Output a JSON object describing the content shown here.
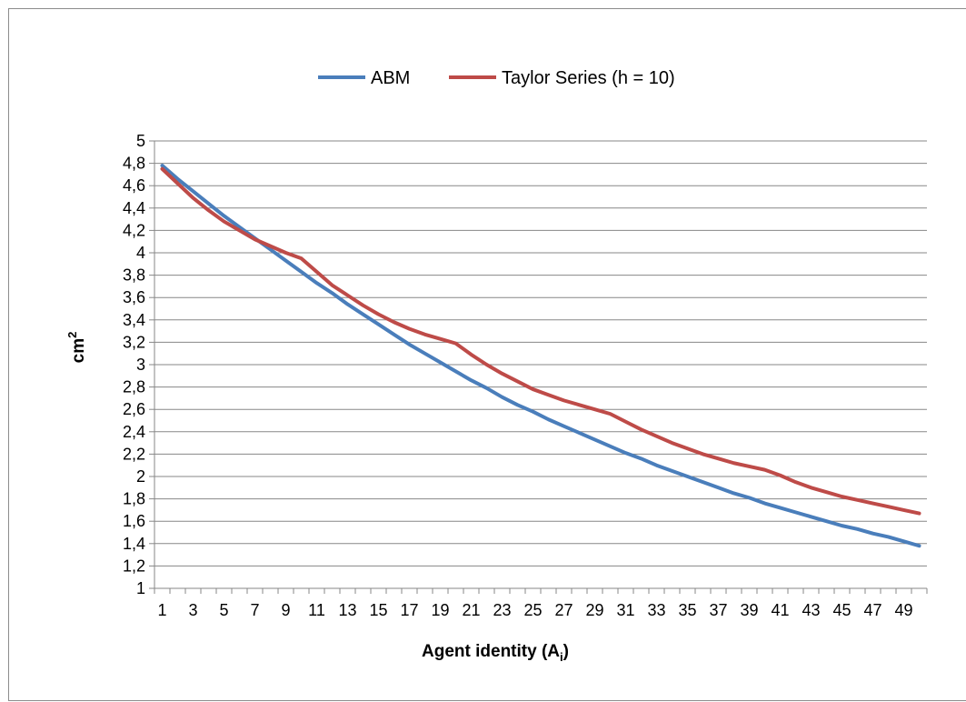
{
  "chart_data": {
    "type": "line",
    "title": "",
    "xlabel": "Agent identity (A",
    "xlabel_sub": "i",
    "xlabel_tail": ")",
    "ylabel": "cm",
    "ylabel_sup": "2",
    "x": [
      1,
      2,
      3,
      4,
      5,
      6,
      7,
      8,
      9,
      10,
      11,
      12,
      13,
      14,
      15,
      16,
      17,
      18,
      19,
      20,
      21,
      22,
      23,
      24,
      25,
      26,
      27,
      28,
      29,
      30,
      31,
      32,
      33,
      34,
      35,
      36,
      37,
      38,
      39,
      40,
      41,
      42,
      43,
      44,
      45,
      46,
      47,
      48,
      49,
      50
    ],
    "x_tick_labels": [
      "1",
      "3",
      "5",
      "7",
      "9",
      "11",
      "13",
      "15",
      "17",
      "19",
      "21",
      "23",
      "25",
      "27",
      "29",
      "31",
      "33",
      "35",
      "37",
      "39",
      "41",
      "43",
      "45",
      "47",
      "49"
    ],
    "y_tick_labels": [
      "1",
      "1,2",
      "1,4",
      "1,6",
      "1,8",
      "2",
      "2,2",
      "2,4",
      "2,6",
      "2,8",
      "3",
      "3,2",
      "3,4",
      "3,6",
      "3,8",
      "4",
      "4,2",
      "4,4",
      "4,6",
      "4,8",
      "5"
    ],
    "ylim": [
      1,
      5
    ],
    "y_step": 0.2,
    "xlim": [
      0.5,
      50.5
    ],
    "grid": "horizontal",
    "legend_position": "top-center",
    "series": [
      {
        "name": "ABM",
        "color": "#4a7ebb",
        "values": [
          4.78,
          4.66,
          4.55,
          4.44,
          4.33,
          4.23,
          4.13,
          4.03,
          3.93,
          3.83,
          3.73,
          3.64,
          3.54,
          3.45,
          3.36,
          3.27,
          3.18,
          3.1,
          3.02,
          2.94,
          2.86,
          2.79,
          2.71,
          2.64,
          2.58,
          2.51,
          2.45,
          2.39,
          2.33,
          2.27,
          2.21,
          2.16,
          2.1,
          2.05,
          2.0,
          1.95,
          1.9,
          1.85,
          1.81,
          1.76,
          1.72,
          1.68,
          1.64,
          1.6,
          1.56,
          1.53,
          1.49,
          1.46,
          1.42,
          1.38
        ]
      },
      {
        "name": "Taylor Series (h = 10)",
        "color": "#be4b48",
        "values": [
          4.75,
          4.62,
          4.49,
          4.38,
          4.28,
          4.2,
          4.12,
          4.06,
          4.0,
          3.95,
          3.83,
          3.71,
          3.62,
          3.53,
          3.45,
          3.38,
          3.32,
          3.27,
          3.23,
          3.19,
          3.09,
          3.0,
          2.92,
          2.85,
          2.78,
          2.73,
          2.68,
          2.64,
          2.6,
          2.56,
          2.49,
          2.42,
          2.36,
          2.3,
          2.25,
          2.2,
          2.16,
          2.12,
          2.09,
          2.06,
          2.01,
          1.95,
          1.9,
          1.86,
          1.82,
          1.79,
          1.76,
          1.73,
          1.7,
          1.67
        ]
      }
    ]
  }
}
